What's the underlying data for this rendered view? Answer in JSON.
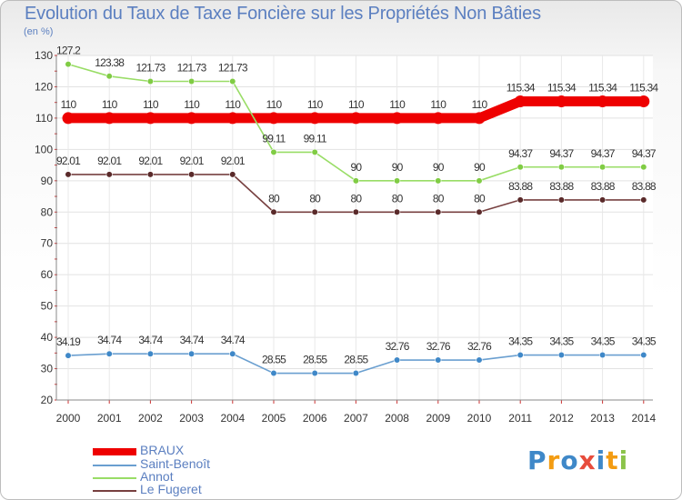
{
  "chart_data": {
    "type": "line",
    "title": "Evolution du Taux de Taxe Foncière sur les Propriétés Non Bâties",
    "ylabel": "(en %)",
    "xlabel": "",
    "ylim": [
      20,
      130
    ],
    "yticks": [
      20,
      30,
      40,
      50,
      60,
      70,
      80,
      90,
      100,
      110,
      120,
      130
    ],
    "grid": true,
    "x": [
      "2000",
      "2001",
      "2002",
      "2003",
      "2004",
      "2005",
      "2006",
      "2007",
      "2008",
      "2009",
      "2010",
      "2011",
      "2012",
      "2013",
      "2014"
    ],
    "series": [
      {
        "name": "BRAUX",
        "color": "#ee0000",
        "thick": true,
        "values": [
          110,
          110,
          110,
          110,
          110,
          110,
          110,
          110,
          110,
          110,
          110,
          115.34,
          115.34,
          115.34,
          115.34
        ],
        "labels": [
          "110",
          "110",
          "110",
          "110",
          "110",
          "110",
          "110",
          "110",
          "110",
          "110",
          "110",
          "115.34",
          "115.34",
          "115.34",
          "115.34"
        ]
      },
      {
        "name": "Saint-Benoît",
        "color": "#6a9fd0",
        "marker": "#3f88c8",
        "thick": false,
        "values": [
          34.19,
          34.74,
          34.74,
          34.74,
          34.74,
          28.55,
          28.55,
          28.55,
          32.76,
          32.76,
          32.76,
          34.35,
          34.35,
          34.35,
          34.35
        ],
        "labels": [
          "34.19",
          "34.74",
          "34.74",
          "34.74",
          "34.74",
          "28.55",
          "28.55",
          "28.55",
          "32.76",
          "32.76",
          "32.76",
          "34.35",
          "34.35",
          "34.35",
          "34.35"
        ]
      },
      {
        "name": "Annot",
        "color": "#99dd66",
        "marker": "#80cc44",
        "thick": false,
        "values": [
          127.2,
          123.38,
          121.73,
          121.73,
          121.73,
          99.11,
          99.11,
          90,
          90,
          90,
          90,
          94.37,
          94.37,
          94.37,
          94.37
        ],
        "labels": [
          "127.2",
          "123.38",
          "121.73",
          "121.73",
          "121.73",
          "99.11",
          "99.11",
          "90",
          "90",
          "90",
          "90",
          "94.37",
          "94.37",
          "94.37",
          "94.37"
        ]
      },
      {
        "name": "Le Fugeret",
        "color": "#774040",
        "marker": "#5a2a2a",
        "thick": false,
        "values": [
          92.01,
          92.01,
          92.01,
          92.01,
          92.01,
          80,
          80,
          80,
          80,
          80,
          80,
          83.88,
          83.88,
          83.88,
          83.88
        ],
        "labels": [
          "92.01",
          "92.01",
          "92.01",
          "92.01",
          "92.01",
          "80",
          "80",
          "80",
          "80",
          "80",
          "80",
          "83.88",
          "83.88",
          "83.88",
          "83.88"
        ]
      }
    ]
  },
  "legend_labels": [
    "BRAUX",
    "Saint-Benoît",
    "Annot",
    "Le Fugeret"
  ],
  "legend_colors": [
    "#ee0000",
    "#6a9fd0",
    "#99dd66",
    "#774040"
  ],
  "logo": {
    "text": "Proxiti",
    "colors": [
      "#3f88c8",
      "#f39c12",
      "#3f88c8",
      "#e74c3c",
      "#3f88c8",
      "#f39c12",
      "#8bc34a"
    ]
  }
}
